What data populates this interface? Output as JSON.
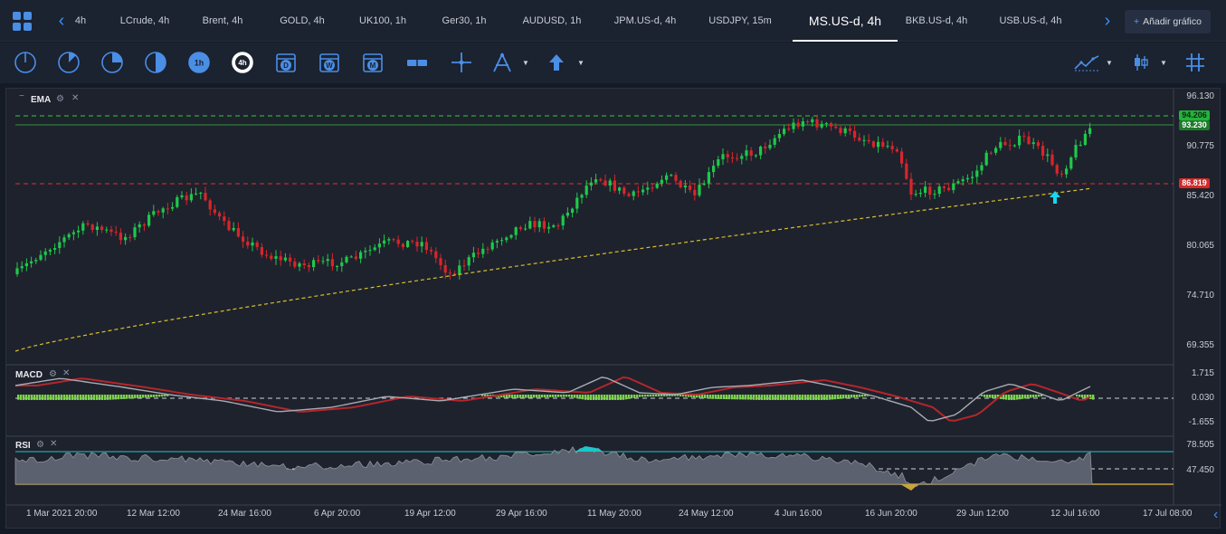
{
  "tabs": [
    "4h",
    "LCrude, 4h",
    "Brent, 4h",
    "GOLD, 4h",
    "UK100, 1h",
    "Ger30, 1h",
    "AUDUSD, 1h",
    "JPM.US-d, 4h",
    "USDJPY, 15m",
    "MS.US-d, 4h",
    "BKB.US-d, 4h",
    "USB.US-d, 4h"
  ],
  "active_tab": "MS.US-d, 4h",
  "add_chart_label": "Añadir gráfico",
  "toolbar_icons": [
    "timeframe-1-icon",
    "timeframe-2-icon",
    "timeframe-3-icon",
    "timeframe-4-icon",
    "timeframe-1h-icon",
    "timeframe-4h-icon",
    "daily-calendar-icon",
    "weekly-calendar-icon",
    "monthly-calendar-icon",
    "measure-range-icon",
    "crosshair-icon",
    "drawing-tools-icon",
    "arrow-up-icon",
    "indicators-icon",
    "candle-type-icon",
    "grid-icon"
  ],
  "panes": {
    "main": {
      "indicator": "EMA",
      "price_labels": [
        "96.130",
        "90.775",
        "85.420",
        "80.065",
        "74.710",
        "69.355"
      ],
      "tags": {
        "green_upper": "94.206",
        "green_lower": "93.230",
        "red": "86.819"
      }
    },
    "macd": {
      "indicator": "MACD",
      "labels": [
        "1.715",
        "0.030",
        "-1.655"
      ]
    },
    "rsi": {
      "indicator": "RSI",
      "labels": [
        "78.505",
        "47.450"
      ]
    }
  },
  "x_axis": [
    "1 Mar 2021 20:00",
    "12 Mar 12:00",
    "24 Mar 16:00",
    "6 Apr 20:00",
    "19 Apr 12:00",
    "29 Apr 16:00",
    "11 May 20:00",
    "24 May 12:00",
    "4 Jun 16:00",
    "16 Jun 20:00",
    "29 Jun 12:00",
    "12 Jul 16:00",
    "17 Jul 08:00"
  ],
  "colors": {
    "bull": "#1ec94a",
    "bear": "#d7262b",
    "ema": "#d8c02a",
    "accent": "#3d8fe8",
    "green_line": "#2bd03a",
    "red_line": "#e03030"
  }
}
